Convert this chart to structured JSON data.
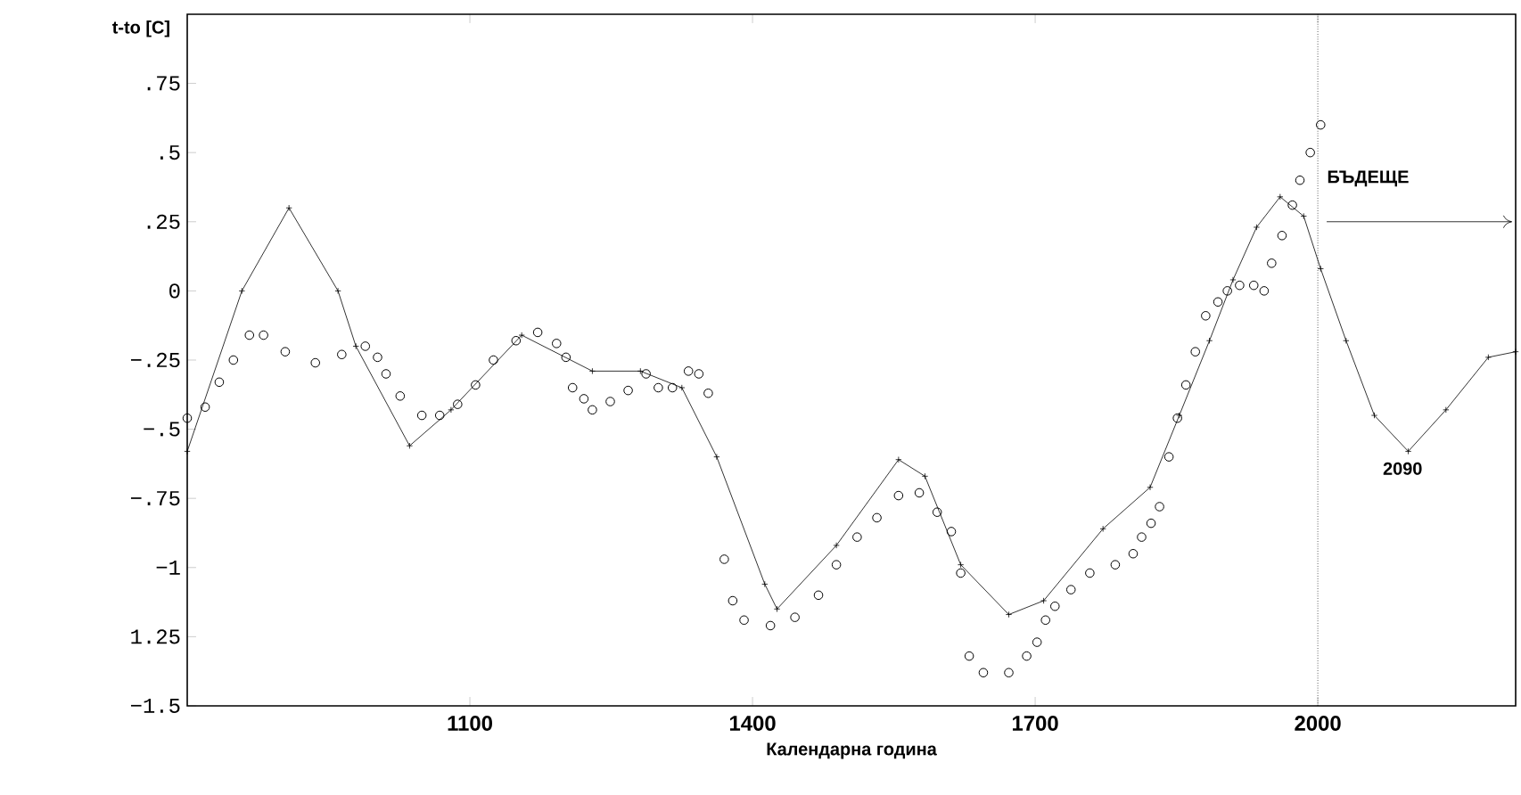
{
  "chart_data": {
    "type": "line",
    "xlabel": "Календарна година",
    "ylabel": "t-to [C]",
    "xlim": [
      800,
      2210
    ],
    "xticks": [
      1100,
      1400,
      1700,
      2000
    ],
    "ylim": [
      -1.5,
      1.0
    ],
    "yticks": [
      {
        "value": 0.75,
        "label": ".75"
      },
      {
        "value": 0.5,
        "label": ".5"
      },
      {
        "value": 0.25,
        "label": ".25"
      },
      0,
      {
        "value": -0.25,
        "label": "−.25"
      },
      {
        "value": -0.5,
        "label": "−.5"
      },
      {
        "value": -0.75,
        "label": "−.75"
      },
      {
        "value": -1,
        "label": "−1"
      },
      {
        "value": -1.25,
        "label": "1.25"
      },
      {
        "value": -1.5,
        "label": "−1.5"
      }
    ],
    "series": [
      {
        "color": "#000000",
        "marker": "cross",
        "line_style": "solid",
        "x": [
          800,
          858,
          908,
          960,
          979,
          1036,
          1080,
          1155,
          1230,
          1281,
          1325,
          1362,
          1413,
          1426,
          1489,
          1555,
          1583,
          1621,
          1672,
          1709,
          1772,
          1822,
          1853,
          1885,
          1910,
          1935,
          1960,
          1985,
          2003,
          2030,
          2060,
          2096,
          2136,
          2181,
          2210
        ],
        "values": [
          -0.58,
          0.0,
          0.3,
          0.0,
          -0.2,
          -0.56,
          -0.43,
          -0.16,
          -0.29,
          -0.29,
          -0.35,
          -0.6,
          -1.06,
          -1.15,
          -0.92,
          -0.61,
          -0.67,
          -0.99,
          -1.17,
          -1.12,
          -0.86,
          -0.71,
          -0.45,
          -0.18,
          0.04,
          0.23,
          0.34,
          0.27,
          0.08,
          -0.18,
          -0.45,
          -0.58,
          -0.43,
          -0.24,
          -0.22
        ]
      },
      {
        "type": "scatter",
        "color": "#000000",
        "marker": "circle",
        "x": [
          800,
          819,
          834,
          849,
          866,
          881,
          904,
          936,
          964,
          989,
          1002,
          1011,
          1026,
          1049,
          1068,
          1087,
          1106,
          1125,
          1149,
          1172,
          1192,
          1202,
          1209,
          1221,
          1230,
          1249,
          1268,
          1287,
          1300,
          1315,
          1332,
          1343,
          1353,
          1370,
          1379,
          1391,
          1419,
          1445,
          1470,
          1489,
          1511,
          1532,
          1555,
          1577,
          1596,
          1611,
          1621,
          1630,
          1645,
          1672,
          1691,
          1702,
          1711,
          1721,
          1738,
          1758,
          1785,
          1804,
          1813,
          1823,
          1832,
          1842,
          1851,
          1860,
          1870,
          1881,
          1894,
          1904,
          1917,
          1932,
          1943,
          1951,
          1962,
          1973,
          1981,
          1992,
          2003
        ],
        "values": [
          -0.46,
          -0.42,
          -0.33,
          -0.25,
          -0.16,
          -0.16,
          -0.22,
          -0.26,
          -0.23,
          -0.2,
          -0.24,
          -0.3,
          -0.38,
          -0.45,
          -0.45,
          -0.41,
          -0.34,
          -0.25,
          -0.18,
          -0.15,
          -0.19,
          -0.24,
          -0.35,
          -0.39,
          -0.43,
          -0.4,
          -0.36,
          -0.3,
          -0.35,
          -0.35,
          -0.29,
          -0.3,
          -0.37,
          -0.97,
          -1.12,
          -1.19,
          -1.21,
          -1.18,
          -1.1,
          -0.99,
          -0.89,
          -0.82,
          -0.74,
          -0.73,
          -0.8,
          -0.87,
          -1.02,
          -1.32,
          -1.38,
          -1.38,
          -1.32,
          -1.27,
          -1.19,
          -1.14,
          -1.08,
          -1.02,
          -0.99,
          -0.95,
          -0.89,
          -0.84,
          -0.78,
          -0.6,
          -0.46,
          -0.34,
          -0.22,
          -0.09,
          -0.04,
          0.0,
          0.02,
          0.02,
          0.0,
          0.1,
          0.2,
          0.31,
          0.4,
          0.5,
          0.6
        ]
      }
    ],
    "ref_lines": [
      {
        "axis": "x",
        "value": 2000,
        "line_style": "dotted",
        "color": "#000000"
      }
    ],
    "annotations": [
      "БЪДЕЩЕ",
      {
        "text": "2090",
        "x": 2090,
        "y": -0.58
      }
    ]
  }
}
